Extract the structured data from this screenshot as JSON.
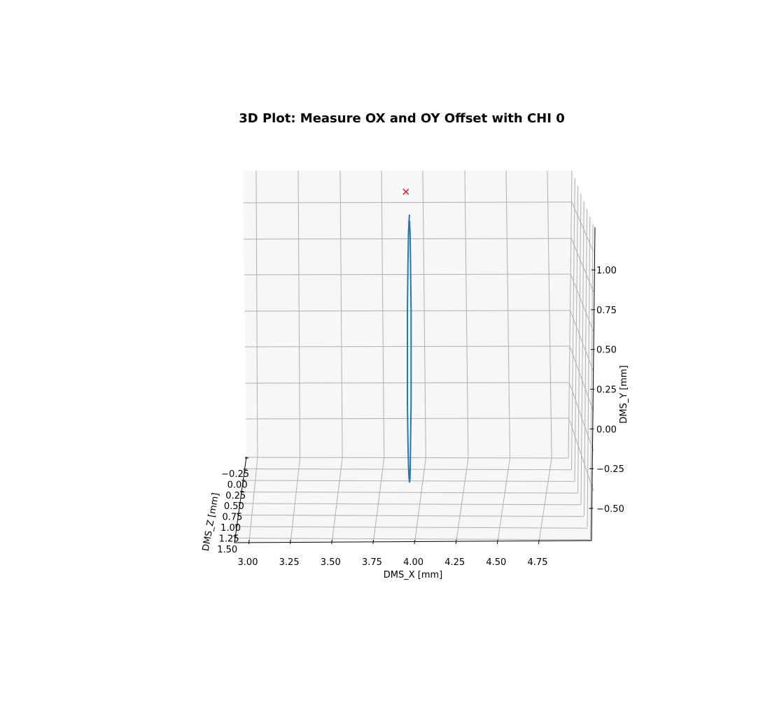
{
  "chart_data": {
    "type": "line",
    "projection": "3d",
    "title": "3D Plot: Measure OX and OY Offset with CHI 0",
    "xlabel": "DMS_X [mm]",
    "ylabel": "DMS_Y [mm]",
    "zlabel": "DMS_Z [mm]",
    "x_ticks": [
      "3.00",
      "3.25",
      "3.50",
      "3.75",
      "4.00",
      "4.25",
      "4.50",
      "4.75"
    ],
    "y_ticks": [
      "−0.50",
      "−0.25",
      "0.00",
      "0.25",
      "0.50",
      "0.75",
      "1.00"
    ],
    "z_ticks": [
      "−0.25",
      "0.00",
      "0.25",
      "0.50",
      "0.75",
      "1.00",
      "1.25",
      "1.50"
    ],
    "series": [
      {
        "color": "#1f77b4",
        "marker": "none",
        "x": [
          3.9,
          3.91,
          3.92,
          3.93,
          3.93,
          3.93,
          3.92,
          3.915,
          3.91,
          3.9,
          3.89,
          3.88,
          3.87,
          3.86,
          3.86,
          3.86,
          3.87,
          3.88,
          3.89,
          3.9
        ],
        "y": [
          1.18,
          1.1,
          0.9,
          0.6,
          0.3,
          0.0,
          -0.25,
          -0.4,
          -0.48,
          -0.51,
          -0.48,
          -0.4,
          -0.25,
          0.0,
          0.3,
          0.6,
          0.9,
          1.1,
          1.18,
          1.22
        ],
        "z": [
          0,
          0,
          0,
          0,
          0,
          0,
          0,
          0,
          0,
          0,
          0,
          0,
          0,
          0,
          0,
          0,
          0,
          0,
          0,
          0
        ]
      },
      {
        "color": "#d62728",
        "marker": "x",
        "x": [
          3.9
        ],
        "y": [
          1.15
        ],
        "z": [
          0
        ]
      }
    ]
  }
}
